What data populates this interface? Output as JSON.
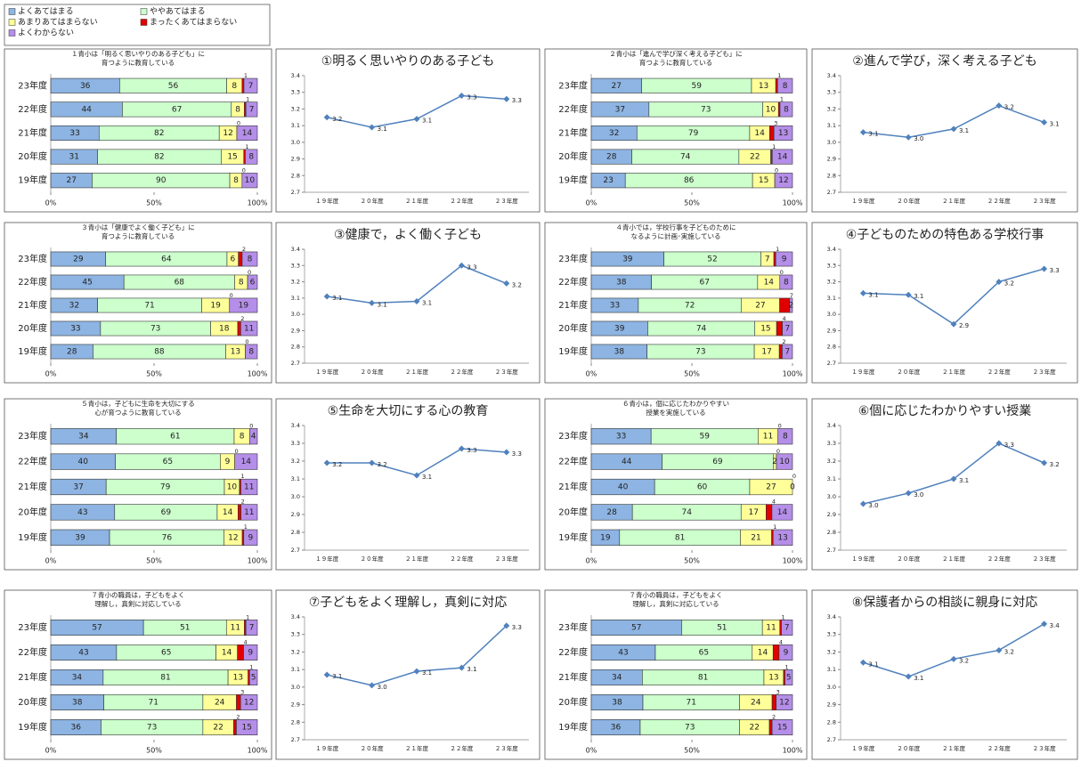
{
  "legend": [
    {
      "name": "よくあてはまる",
      "color": "#8db4e2"
    },
    {
      "name": "ややあてはまる",
      "color": "#ccffcc"
    },
    {
      "name": "あまりあてはまらない",
      "color": "#ffff99"
    },
    {
      "name": "まったくあてはまらない",
      "color": "#e00000"
    },
    {
      "name": "よくわからない",
      "color": "#b48ee8"
    }
  ],
  "chart_data": [
    {
      "type": "bar100",
      "title": [
        "１青小は「明るく思いやりのある子ども」に",
        "育つように教育している"
      ],
      "categories": [
        "23年度",
        "22年度",
        "21年度",
        "20年度",
        "19年度"
      ],
      "series": [
        {
          "values": [
            36,
            44,
            33,
            31,
            27
          ]
        },
        {
          "values": [
            56,
            67,
            82,
            82,
            90
          ]
        },
        {
          "values": [
            8,
            8,
            12,
            15,
            8
          ]
        },
        {
          "values": [
            1,
            1,
            0,
            1,
            0
          ]
        },
        {
          "values": [
            7,
            7,
            14,
            8,
            10
          ]
        }
      ],
      "xlim": [
        0,
        100
      ],
      "xticks": [
        {
          "value": 0,
          "label": "0%"
        },
        {
          "value": 50,
          "label": "50%"
        },
        {
          "value": 100,
          "label": "100%"
        }
      ]
    },
    {
      "type": "line",
      "title": "①明るく思いやりのある子ども",
      "categories": [
        "１９年度",
        "２０年度",
        "２１年度",
        "２２年度",
        "２３年度"
      ],
      "values": [
        3.15,
        3.09,
        3.14,
        3.28,
        3.26
      ],
      "value_labels": [
        "3.2",
        "3.1",
        "3.1",
        "3.3",
        "3.3"
      ],
      "color": "#4f81bd",
      "ylim": [
        2.7,
        3.4
      ],
      "yticks": [
        2.7,
        2.8,
        2.9,
        {
          "value": 3,
          "label": "3.0"
        },
        3.1,
        3.2,
        3.3,
        3.4
      ]
    },
    {
      "type": "bar100",
      "title": [
        "２青小は「進んで学び深く考える子ども」に",
        "育つように教育している"
      ],
      "categories": [
        "23年度",
        "22年度",
        "21年度",
        "20年度",
        "19年度"
      ],
      "series": [
        {
          "values": [
            27,
            37,
            32,
            28,
            23
          ]
        },
        {
          "values": [
            59,
            73,
            79,
            74,
            86
          ]
        },
        {
          "values": [
            13,
            10,
            14,
            22,
            15
          ]
        },
        {
          "values": [
            1,
            1,
            3,
            1,
            0
          ]
        },
        {
          "values": [
            8,
            8,
            13,
            14,
            12
          ]
        }
      ],
      "xlim": [
        0,
        100
      ],
      "xticks": [
        {
          "value": 0,
          "label": "0%"
        },
        {
          "value": 50,
          "label": "50%"
        },
        {
          "value": 100,
          "label": "100%"
        }
      ]
    },
    {
      "type": "line",
      "title": "②進んで学び，深く考える子ども",
      "categories": [
        "１９年度",
        "２０年度",
        "２１年度",
        "２２年度",
        "２３年度"
      ],
      "values": [
        3.06,
        3.03,
        3.08,
        3.22,
        3.12
      ],
      "value_labels": [
        "3.1",
        "3.0",
        "3.1",
        "3.2",
        "3.1"
      ],
      "color": "#4f81bd",
      "ylim": [
        2.7,
        3.4
      ],
      "yticks": [
        2.7,
        2.8,
        2.9,
        {
          "value": 3,
          "label": "3.0"
        },
        3.1,
        3.2,
        3.3,
        3.4
      ]
    },
    {
      "type": "bar100",
      "title": [
        "３青小は「健康でよく働く子ども」に",
        "育つように教育している"
      ],
      "categories": [
        "23年度",
        "22年度",
        "21年度",
        "20年度",
        "19年度"
      ],
      "series": [
        {
          "values": [
            29,
            45,
            32,
            33,
            28
          ]
        },
        {
          "values": [
            64,
            68,
            71,
            73,
            88
          ]
        },
        {
          "values": [
            6,
            8,
            19,
            18,
            13
          ]
        },
        {
          "values": [
            2,
            0,
            0,
            2,
            0
          ]
        },
        {
          "values": [
            8,
            6,
            19,
            11,
            8
          ]
        }
      ],
      "xlim": [
        0,
        100
      ],
      "xticks": [
        {
          "value": 0,
          "label": "0%"
        },
        {
          "value": 50,
          "label": "50%"
        },
        {
          "value": 100,
          "label": "100%"
        }
      ]
    },
    {
      "type": "line",
      "title": "③健康で，よく働く子ども",
      "categories": [
        "１９年度",
        "２０年度",
        "２１年度",
        "２２年度",
        "２３年度"
      ],
      "values": [
        3.11,
        3.07,
        3.08,
        3.3,
        3.19
      ],
      "value_labels": [
        "3.1",
        "3.1",
        "3.1",
        "3.3",
        "3.2"
      ],
      "color": "#4f81bd",
      "ylim": [
        2.7,
        3.4
      ],
      "yticks": [
        2.7,
        2.8,
        2.9,
        {
          "value": 3,
          "label": "3.0"
        },
        3.1,
        3.2,
        3.3,
        3.4
      ]
    },
    {
      "type": "bar100",
      "title": [
        "４青小では，学校行事を子どものために",
        "なるように計画･実施している"
      ],
      "categories": [
        "23年度",
        "22年度",
        "21年度",
        "20年度",
        "19年度"
      ],
      "series": [
        {
          "values": [
            39,
            38,
            33,
            39,
            38
          ]
        },
        {
          "values": [
            52,
            67,
            72,
            74,
            73
          ]
        },
        {
          "values": [
            7,
            14,
            27,
            15,
            17
          ]
        },
        {
          "values": [
            1,
            0,
            7,
            4,
            2
          ]
        },
        {
          "values": [
            9,
            8,
            2,
            7,
            7
          ]
        }
      ],
      "xlim": [
        0,
        100
      ],
      "xticks": [
        {
          "value": 0,
          "label": "0%"
        },
        {
          "value": 50,
          "label": "50%"
        },
        {
          "value": 100,
          "label": "100%"
        }
      ]
    },
    {
      "type": "line",
      "title": "④子どものための特色ある学校行事",
      "categories": [
        "１９年度",
        "２０年度",
        "２１年度",
        "２２年度",
        "２３年度"
      ],
      "values": [
        3.13,
        3.12,
        2.94,
        3.2,
        3.28
      ],
      "value_labels": [
        "3.1",
        "3.1",
        "2.9",
        "3.2",
        "3.3"
      ],
      "color": "#4f81bd",
      "ylim": [
        2.7,
        3.4
      ],
      "yticks": [
        2.7,
        2.8,
        2.9,
        {
          "value": 3,
          "label": "3.0"
        },
        3.1,
        3.2,
        3.3,
        3.4
      ]
    },
    {
      "type": "bar100",
      "title": [
        "５青小は，子どもに生命を大切にする",
        "心が育つように教育している"
      ],
      "categories": [
        "23年度",
        "22年度",
        "21年度",
        "20年度",
        "19年度"
      ],
      "series": [
        {
          "values": [
            34,
            40,
            37,
            43,
            39
          ]
        },
        {
          "values": [
            61,
            65,
            79,
            69,
            76
          ]
        },
        {
          "values": [
            8,
            9,
            10,
            14,
            12
          ]
        },
        {
          "values": [
            0,
            0,
            1,
            2,
            1
          ]
        },
        {
          "values": [
            4,
            14,
            11,
            11,
            9
          ]
        }
      ],
      "xlim": [
        0,
        100
      ],
      "xticks": [
        {
          "value": 0,
          "label": "0%"
        },
        {
          "value": 50,
          "label": "50%"
        },
        {
          "value": 100,
          "label": "100%"
        }
      ]
    },
    {
      "type": "line",
      "title": "⑤生命を大切にする心の教育",
      "categories": [
        "１９年度",
        "２０年度",
        "２１年度",
        "２２年度",
        "２３年度"
      ],
      "values": [
        3.19,
        3.19,
        3.12,
        3.27,
        3.25
      ],
      "value_labels": [
        "3.2",
        "3.2",
        "3.1",
        "3.3",
        "3.3"
      ],
      "color": "#4f81bd",
      "ylim": [
        2.7,
        3.4
      ],
      "yticks": [
        2.7,
        2.8,
        2.9,
        {
          "value": 3,
          "label": "3.0"
        },
        3.1,
        3.2,
        3.3,
        3.4
      ]
    },
    {
      "type": "bar100",
      "title": [
        "６青小は，個に応じたわかりやすい",
        "授業を実施している"
      ],
      "categories": [
        "23年度",
        "22年度",
        "21年度",
        "20年度",
        "19年度"
      ],
      "series": [
        {
          "values": [
            33,
            44,
            40,
            28,
            19
          ]
        },
        {
          "values": [
            59,
            69,
            60,
            74,
            81
          ]
        },
        {
          "values": [
            11,
            2,
            27,
            17,
            21
          ]
        },
        {
          "values": [
            0,
            0,
            0,
            4,
            1
          ]
        },
        {
          "values": [
            8,
            10,
            0,
            14,
            13
          ]
        }
      ],
      "xlim": [
        0,
        100
      ],
      "xticks": [
        {
          "value": 0,
          "label": "0%"
        },
        {
          "value": 50,
          "label": "50%"
        },
        {
          "value": 100,
          "label": "100%"
        }
      ]
    },
    {
      "type": "line",
      "title": "⑥個に応じたわかりやすい授業",
      "categories": [
        "１９年度",
        "２０年度",
        "２１年度",
        "２２年度",
        "２３年度"
      ],
      "values": [
        2.96,
        3.02,
        3.1,
        3.3,
        3.19
      ],
      "value_labels": [
        "3.0",
        "3.0",
        "3.1",
        "3.3",
        "3.2"
      ],
      "color": "#4f81bd",
      "ylim": [
        2.7,
        3.4
      ],
      "yticks": [
        2.7,
        2.8,
        2.9,
        {
          "value": 3,
          "label": "3.0"
        },
        3.1,
        3.2,
        3.3,
        3.4
      ]
    },
    {
      "type": "bar100",
      "title": [
        "７青小の職員は，子どもをよく",
        "理解し，真剣に対応している"
      ],
      "categories": [
        "23年度",
        "22年度",
        "21年度",
        "20年度",
        "19年度"
      ],
      "series": [
        {
          "values": [
            57,
            43,
            34,
            38,
            36
          ]
        },
        {
          "values": [
            51,
            65,
            81,
            71,
            73
          ]
        },
        {
          "values": [
            11,
            14,
            13,
            24,
            22
          ]
        },
        {
          "values": [
            1,
            4,
            1,
            3,
            2
          ]
        },
        {
          "values": [
            7,
            9,
            5,
            12,
            15
          ]
        }
      ],
      "xlim": [
        0,
        100
      ],
      "xticks": [
        {
          "value": 0,
          "label": "0%"
        },
        {
          "value": 50,
          "label": "50%"
        },
        {
          "value": 100,
          "label": "100%"
        }
      ]
    },
    {
      "type": "line",
      "title": "⑦子どもをよく理解し，真剣に対応",
      "categories": [
        "１９年度",
        "２０年度",
        "２１年度",
        "２２年度",
        "２３年度"
      ],
      "values": [
        3.07,
        3.01,
        3.09,
        3.11,
        3.35
      ],
      "value_labels": [
        "3.1",
        "3.0",
        "3.1",
        "3.1",
        "3.3"
      ],
      "color": "#4f81bd",
      "ylim": [
        2.7,
        3.4
      ],
      "yticks": [
        2.7,
        2.8,
        2.9,
        {
          "value": 3,
          "label": "3.0"
        },
        3.1,
        3.2,
        3.3,
        3.4
      ]
    },
    {
      "type": "bar100",
      "title": [
        "７青小の職員は，子どもをよく",
        "理解し，真剣に対応している"
      ],
      "categories": [
        "23年度",
        "22年度",
        "21年度",
        "20年度",
        "19年度"
      ],
      "series": [
        {
          "values": [
            57,
            43,
            34,
            38,
            36
          ]
        },
        {
          "values": [
            51,
            65,
            81,
            71,
            73
          ]
        },
        {
          "values": [
            11,
            14,
            13,
            24,
            22
          ]
        },
        {
          "values": [
            1,
            4,
            1,
            3,
            2
          ]
        },
        {
          "values": [
            7,
            9,
            5,
            12,
            15
          ]
        }
      ],
      "xlim": [
        0,
        100
      ],
      "xticks": [
        {
          "value": 0,
          "label": "0%"
        },
        {
          "value": 50,
          "label": "50%"
        },
        {
          "value": 100,
          "label": "100%"
        }
      ]
    },
    {
      "type": "line",
      "title": "⑧保護者からの相談に親身に対応",
      "categories": [
        "１９年度",
        "２０年度",
        "２１年度",
        "２２年度",
        "２３年度"
      ],
      "values": [
        3.14,
        3.06,
        3.16,
        3.21,
        3.36
      ],
      "value_labels": [
        "3.1",
        "3.1",
        "3.2",
        "3.2",
        "3.4"
      ],
      "color": "#4f81bd",
      "ylim": [
        2.7,
        3.4
      ],
      "yticks": [
        2.7,
        2.8,
        2.9,
        {
          "value": 3,
          "label": "3.0"
        },
        3.1,
        3.2,
        3.3,
        3.4
      ]
    }
  ]
}
